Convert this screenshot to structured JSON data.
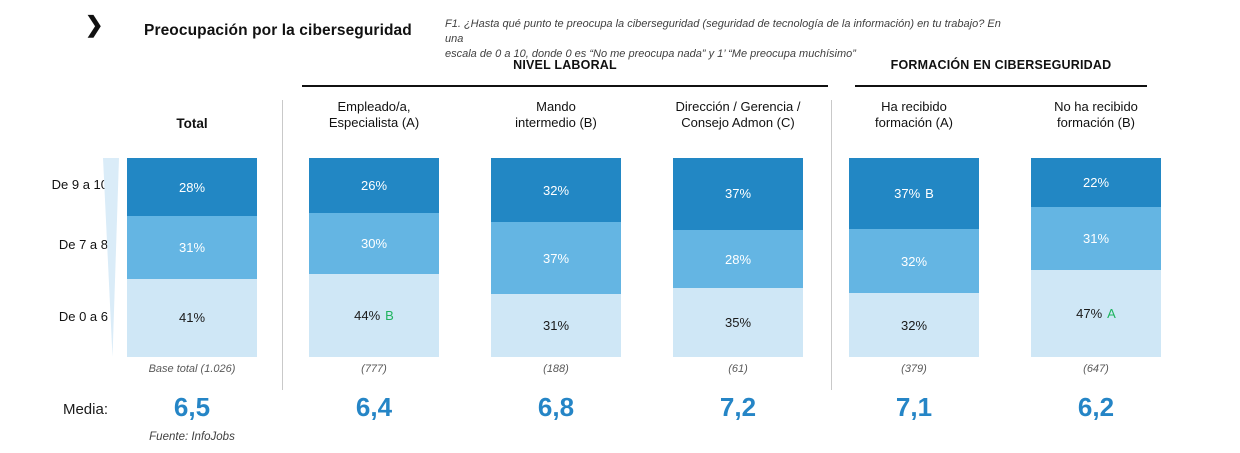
{
  "header": {
    "chevron_icon": "❯",
    "title": "Preocupación por la ciberseguridad",
    "footnote_line1": "F1. ¿Hasta qué punto te preocupa la ciberseguridad (seguridad de tecnología de la información) en tu trabajo? En una",
    "footnote_line2": "escala de 0 a 10, donde 0 es “No me preocupa nada” y 1’ “Me preocupa muchísimo”"
  },
  "sections": {
    "nivel_laboral": "NIVEL LABORAL",
    "formacion": "FORMACIÓN EN CIBERSEGURIDAD"
  },
  "media_label": "Media:",
  "fuente": "Fuente: InfoJobs",
  "colors": {
    "bar_dark": "#2287c4",
    "bar_mid": "#64b5e3",
    "bar_light": "#cfe7f6",
    "funnel": "#daecf8",
    "media_blue": "#2585c6",
    "sig_green": "#1fb45f",
    "label_on_dark": "#ffffff",
    "label_on_light": "#1a1a1a",
    "divider": "#c9c9c9"
  },
  "chart_data": {
    "type": "bar",
    "stacked": true,
    "title": "Preocupación por la ciberseguridad",
    "unit": "%",
    "stack_categories": [
      "De 9 a 10",
      "De 7 a 8",
      "De 0 a 6"
    ],
    "legend_position": "left-row-labels",
    "grid": false,
    "columns": [
      {
        "key": "total",
        "group": "Total",
        "header": [
          "Total"
        ],
        "header_bold": true,
        "values": [
          28,
          31,
          41
        ],
        "labels": [
          "28%",
          "31%",
          "41%"
        ],
        "sig": [
          null,
          null,
          null
        ],
        "base": "Base total (1.026)",
        "media": "6,5"
      },
      {
        "key": "empleado-especialista",
        "group": "NIVEL LABORAL",
        "header": [
          "Empleado/a,",
          "Especialista (A)"
        ],
        "header_bold": false,
        "values": [
          26,
          30,
          44
        ],
        "labels": [
          "26%",
          "30%",
          "44%"
        ],
        "sig": [
          null,
          null,
          {
            "letter": "B",
            "style": "green"
          }
        ],
        "base": "(777)",
        "media": "6,4"
      },
      {
        "key": "mando-intermedio",
        "group": "NIVEL LABORAL",
        "header": [
          "Mando",
          "intermedio (B)"
        ],
        "header_bold": false,
        "values": [
          32,
          37,
          31
        ],
        "labels": [
          "32%",
          "37%",
          "31%"
        ],
        "sig": [
          null,
          null,
          null
        ],
        "base": "(188)",
        "media": "6,8"
      },
      {
        "key": "direccion-gerencia",
        "group": "NIVEL LABORAL",
        "header": [
          "Dirección / Gerencia /",
          "Consejo Admon (C)"
        ],
        "header_bold": false,
        "values": [
          37,
          28,
          35
        ],
        "labels": [
          "37%",
          "28%",
          "35%"
        ],
        "sig": [
          null,
          null,
          null
        ],
        "base": "(61)",
        "media": "7,2"
      },
      {
        "key": "ha-recibido-formacion",
        "group": "FORMACIÓN EN CIBERSEGURIDAD",
        "header": [
          "Ha recibido",
          "formación (A)"
        ],
        "header_bold": false,
        "values": [
          37,
          32,
          32
        ],
        "labels": [
          "37%",
          "32%",
          "32%"
        ],
        "sig": [
          {
            "letter": "B",
            "style": "white"
          },
          null,
          null
        ],
        "base": "(379)",
        "media": "7,1"
      },
      {
        "key": "no-ha-recibido-formacion",
        "group": "FORMACIÓN EN CIBERSEGURIDAD",
        "header": [
          "No ha recibido",
          "formación (B)"
        ],
        "header_bold": false,
        "values": [
          22,
          31,
          47
        ],
        "labels": [
          "22%",
          "31%",
          "47%"
        ],
        "sig": [
          null,
          null,
          {
            "letter": "A",
            "style": "green"
          }
        ],
        "base": "(647)",
        "media": "6,2"
      }
    ]
  }
}
